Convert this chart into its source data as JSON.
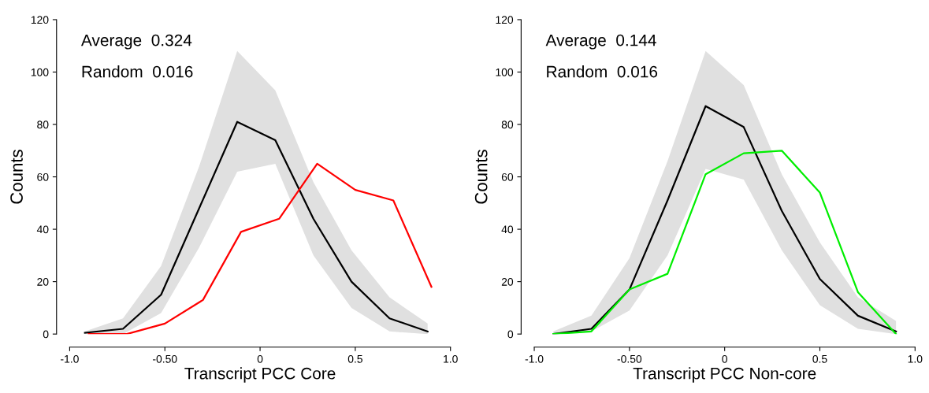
{
  "chart_data": [
    {
      "type": "line",
      "xlabel": "Transcript PCC Core",
      "ylabel": "Counts",
      "annotations": [
        "Average  0.324",
        "Random  0.016"
      ],
      "xlim": [
        -1.0,
        1.0
      ],
      "ylim": [
        0,
        120
      ],
      "xticks": [
        {
          "value": -1.0,
          "label": "-1.0"
        },
        {
          "value": -0.5,
          "label": "-0.50"
        },
        0,
        0.5,
        {
          "value": 1.0,
          "label": "1.0"
        }
      ],
      "yticks": [
        0,
        20,
        40,
        60,
        80,
        100,
        120
      ],
      "grid": false,
      "legend": false,
      "series": [
        {
          "color": "#000000",
          "x": [
            -0.92,
            -0.72,
            -0.52,
            -0.32,
            -0.12,
            0.08,
            0.28,
            0.48,
            0.68,
            0.88
          ],
          "values": [
            0.5,
            2,
            15,
            48,
            81,
            74,
            44,
            20,
            6,
            1
          ],
          "lower": [
            0,
            0,
            8,
            33,
            62,
            65,
            30,
            10,
            1,
            0
          ],
          "upper": [
            1,
            6,
            26,
            64,
            108,
            93,
            58,
            32,
            14,
            4
          ]
        },
        {
          "color": "#ff0000",
          "x": [
            -0.9,
            -0.7,
            -0.5,
            -0.3,
            -0.1,
            0.1,
            0.3,
            0.5,
            0.7,
            0.9
          ],
          "values": [
            0,
            0,
            4,
            13,
            39,
            44,
            65,
            55,
            51,
            18
          ]
        }
      ]
    },
    {
      "type": "line",
      "xlabel": "Transcript PCC Non-core",
      "ylabel": "Counts",
      "annotations": [
        "Average  0.144",
        "Random  0.016"
      ],
      "xlim": [
        -1.0,
        1.0
      ],
      "ylim": [
        0,
        120
      ],
      "xticks": [
        {
          "value": -1.0,
          "label": "-1.0"
        },
        {
          "value": -0.5,
          "label": "-0.50"
        },
        0,
        0.5,
        {
          "value": 1.0,
          "label": "1.0"
        }
      ],
      "yticks": [
        0,
        20,
        40,
        60,
        80,
        100,
        120
      ],
      "grid": false,
      "legend": false,
      "series": [
        {
          "color": "#000000",
          "x": [
            -0.9,
            -0.7,
            -0.5,
            -0.3,
            -0.1,
            0.1,
            0.3,
            0.5,
            0.7,
            0.9
          ],
          "values": [
            0,
            2,
            17,
            51,
            87,
            79,
            47,
            21,
            7,
            1
          ],
          "lower": [
            0,
            1,
            9,
            30,
            63,
            59,
            32,
            11,
            2,
            0
          ],
          "upper": [
            1,
            7,
            29,
            66,
            108,
            95,
            61,
            35,
            14,
            5
          ]
        },
        {
          "color": "#00ee00",
          "x": [
            -0.9,
            -0.7,
            -0.5,
            -0.3,
            -0.1,
            0.1,
            0.3,
            0.5,
            0.7,
            0.9
          ],
          "values": [
            0,
            1,
            17,
            23,
            61,
            69,
            70,
            54,
            16,
            0
          ]
        }
      ]
    }
  ]
}
